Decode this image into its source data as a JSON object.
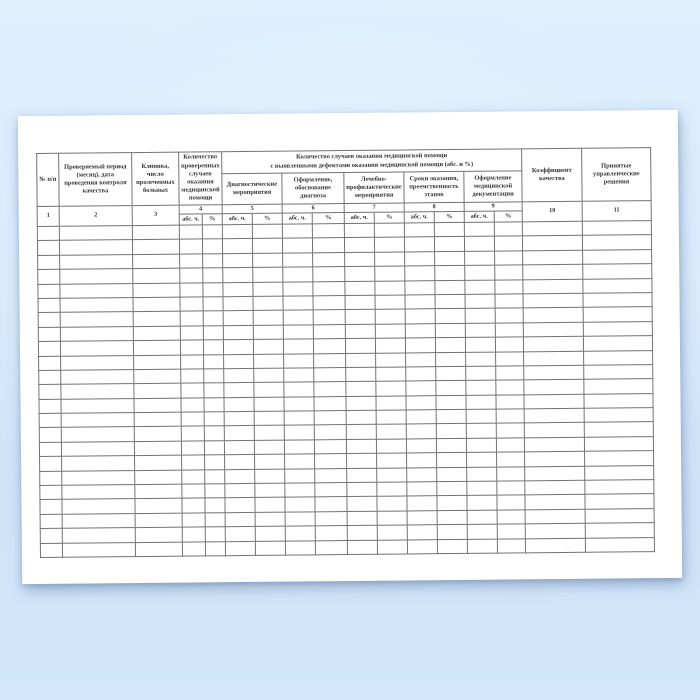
{
  "page": {
    "background_top": "#def0fe",
    "background_bottom": "#cfe4f9",
    "paper_color": "#ffffff",
    "grid_color": "#737373",
    "text_color": "#343434"
  },
  "table": {
    "group_header": "Количество случаев оказания медицинской помощи\nс выявленными дефектами оказания медицинской помощи (абс. и %)",
    "abs_label": "абс. ч.",
    "pct_label": "%",
    "body_row_count": 23,
    "columns": [
      {
        "num": "1",
        "label": "№ п/п"
      },
      {
        "num": "2",
        "label": "Проверяемый период (месяц), дата проведения контроля качества"
      },
      {
        "num": "3",
        "label": "Клиника, число пролеченных больных"
      },
      {
        "num": "4",
        "label": "Количество проверенных случаев оказания медицинской помощи"
      },
      {
        "num": "5",
        "label": "Диагностические мероприятия"
      },
      {
        "num": "6",
        "label": "Оформление, обоснование диагноза"
      },
      {
        "num": "7",
        "label": "Лечебно-профилактические мероприятия"
      },
      {
        "num": "8",
        "label": "Сроки оказания, преемственность этапов"
      },
      {
        "num": "9",
        "label": "Оформление медицинской документации"
      },
      {
        "num": "10",
        "label": "Коэффициент качества"
      },
      {
        "num": "11",
        "label": "Принятые управленческие решения"
      }
    ]
  }
}
